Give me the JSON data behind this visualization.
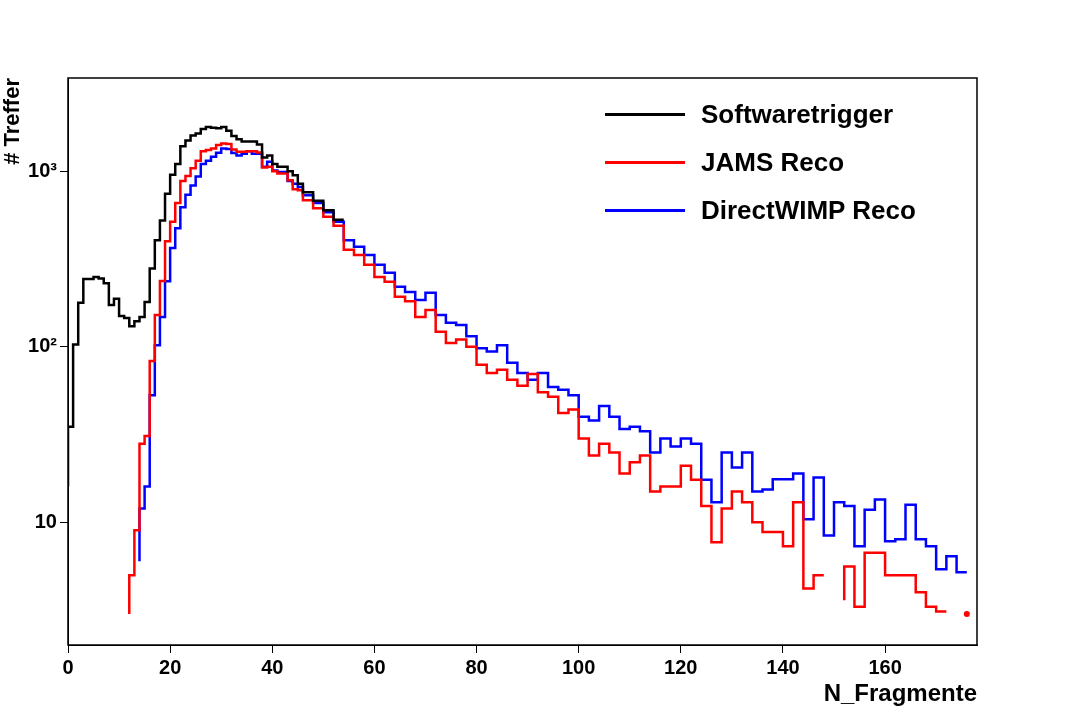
{
  "chart_data": {
    "type": "step",
    "xlabel": "N_Fragmente",
    "ylabel": "# Treffer",
    "log": "y",
    "legend": "top right",
    "xlim": [
      0,
      178
    ],
    "xticks": [
      0,
      20,
      40,
      60,
      80,
      100,
      120,
      140,
      160
    ],
    "ylim": [
      2,
      3400
    ],
    "yticks": [
      {
        "value": 10,
        "label": "10"
      },
      {
        "value": 100,
        "label": "10²"
      },
      {
        "value": 1000,
        "label": "10³"
      }
    ],
    "series": [
      {
        "name": "Softwaretrigger",
        "color": "#000000",
        "x": [
          0,
          1,
          2,
          3,
          4,
          5,
          6,
          7,
          8,
          9,
          10,
          11,
          12,
          13,
          14,
          15,
          16,
          17,
          18,
          19,
          20,
          21,
          22,
          23,
          24,
          25,
          26,
          27,
          28,
          29,
          30,
          31,
          32,
          33,
          34,
          35,
          36,
          37,
          38,
          39,
          40,
          41,
          42,
          43,
          44,
          45,
          46,
          48,
          50,
          52,
          54
        ],
        "values": [
          16,
          35,
          103,
          178,
          243,
          243,
          250,
          245,
          230,
          173,
          188,
          150,
          146,
          131,
          140,
          148,
          180,
          279,
          405,
          525,
          745,
          955,
          1100,
          1390,
          1500,
          1600,
          1640,
          1740,
          1790,
          1770,
          1760,
          1790,
          1700,
          1590,
          1520,
          1480,
          1480,
          1480,
          1420,
          1200,
          1230,
          1100,
          1060,
          1060,
          1000,
          950,
          850,
          760,
          680,
          600,
          530
        ]
      },
      {
        "name": "JAMS Reco",
        "color": "#ff0000",
        "x": [
          12,
          13,
          14,
          15,
          16,
          17,
          18,
          19,
          20,
          21,
          22,
          23,
          24,
          25,
          26,
          27,
          28,
          29,
          30,
          31,
          32,
          33,
          34,
          35,
          36,
          37,
          38,
          39,
          40,
          41,
          42,
          43,
          44,
          45,
          46,
          48,
          50,
          52,
          54,
          56,
          58,
          60,
          62,
          64,
          66,
          68,
          70,
          72,
          74,
          76,
          78,
          80,
          82,
          84,
          86,
          88,
          90,
          92,
          94,
          96,
          98,
          100,
          102,
          104,
          106,
          108,
          110,
          112,
          114,
          116,
          118,
          120,
          122,
          124,
          126,
          128,
          130,
          132,
          134,
          136,
          138,
          140,
          142,
          144,
          146,
          148,
          150,
          152,
          154,
          156,
          158,
          160,
          162,
          164,
          166,
          168,
          170,
          172,
          174,
          176
        ],
        "values": [
          3,
          5,
          9,
          28,
          31,
          83,
          152,
          237,
          400,
          515,
          660,
          880,
          940,
          1040,
          1150,
          1300,
          1320,
          1350,
          1410,
          1440,
          1430,
          1330,
          1290,
          1290,
          1300,
          1300,
          1280,
          1050,
          1060,
          1000,
          970,
          970,
          890,
          790,
          780,
          684,
          615,
          550,
          490,
          357,
          333,
          293,
          250,
          235,
          193,
          182,
          148,
          162,
          122,
          105,
          110,
          100,
          79,
          71,
          74,
          65,
          60,
          70,
          55,
          52,
          42,
          44,
          30,
          24,
          28,
          25,
          19,
          22,
          24,
          15,
          16,
          16,
          21,
          17.5,
          12.4,
          7.7,
          12,
          15,
          13,
          10,
          8.8,
          8.8,
          7.3,
          13,
          4.2,
          5,
          null,
          3.6,
          5.6,
          3.3,
          6.7,
          6.7,
          5,
          5,
          5,
          4,
          3.3,
          3.1,
          null,
          3
        ]
      },
      {
        "name": "DirectWIMP Reco",
        "color": "#0000ff",
        "x": [
          14,
          15,
          16,
          17,
          18,
          19,
          20,
          21,
          22,
          23,
          24,
          25,
          26,
          27,
          28,
          29,
          30,
          31,
          32,
          33,
          34,
          35,
          36,
          37,
          38,
          39,
          40,
          41,
          42,
          43,
          44,
          45,
          46,
          48,
          50,
          52,
          54,
          56,
          58,
          60,
          62,
          64,
          66,
          68,
          70,
          72,
          74,
          76,
          78,
          80,
          82,
          84,
          86,
          88,
          90,
          92,
          94,
          96,
          98,
          100,
          102,
          104,
          106,
          108,
          110,
          112,
          114,
          116,
          118,
          120,
          122,
          124,
          126,
          128,
          130,
          132,
          134,
          136,
          138,
          140,
          142,
          144,
          146,
          148,
          150,
          152,
          154,
          156,
          158,
          160,
          162,
          164,
          166,
          168,
          170,
          172,
          174,
          176
        ],
        "values": [
          6,
          12,
          16,
          53,
          102,
          148,
          236,
          365,
          473,
          624,
          735,
          830,
          935,
          1100,
          1150,
          1210,
          1275,
          1350,
          1340,
          1270,
          1230,
          1260,
          1300,
          1260,
          1260,
          1060,
          1135,
          1010,
          990,
          990,
          880,
          850,
          815,
          730,
          660,
          585,
          515,
          405,
          372,
          333,
          293,
          264,
          220,
          205,
          185,
          203,
          152,
          137,
          133,
          115,
          98,
          94,
          102,
          81,
          71,
          65,
          71,
          59,
          57,
          53,
          40,
          38,
          46,
          40,
          34,
          35,
          33,
          25,
          30,
          27,
          30,
          28,
          17.5,
          13,
          25,
          20.5,
          25,
          15,
          15.4,
          17.6,
          17.6,
          19,
          10.4,
          18,
          8.4,
          13,
          12.4,
          7.3,
          11.8,
          13.5,
          7.8,
          8,
          12.6,
          8,
          7.3,
          5.4,
          6.4,
          5.2
        ]
      }
    ]
  }
}
